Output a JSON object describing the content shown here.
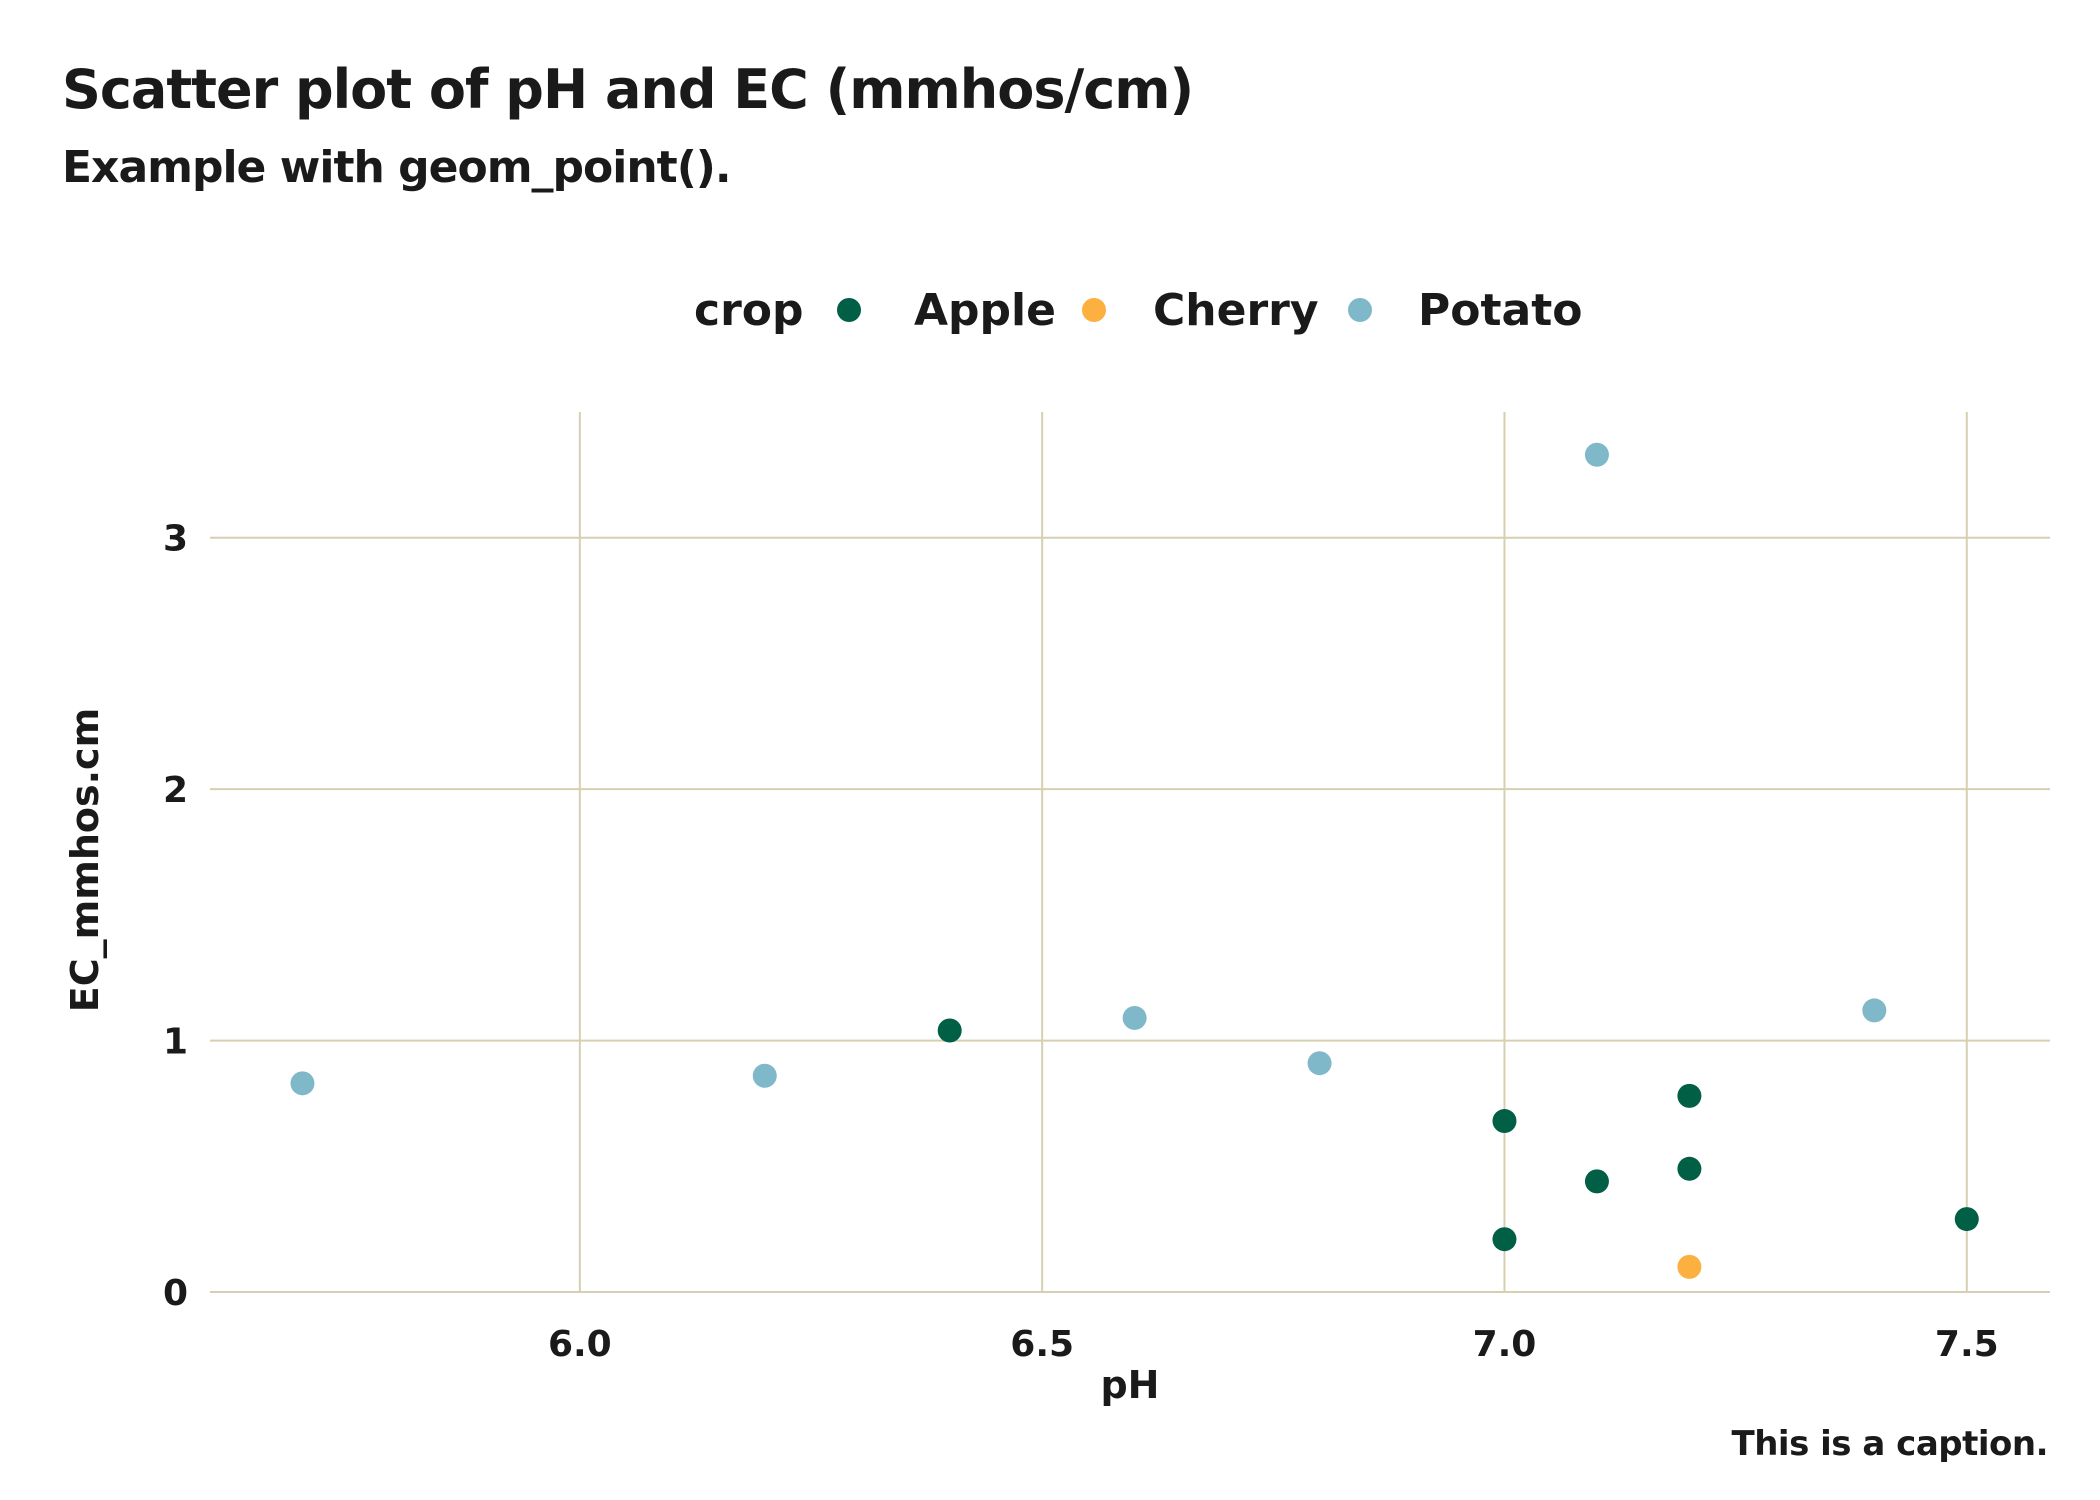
{
  "title": "Scatter plot of pH and EC (mmhos/cm)",
  "subtitle": "Example with geom_point().",
  "caption": "This is a caption.",
  "legend": {
    "title": "crop",
    "items": [
      {
        "label": "Apple",
        "color": "#005f45"
      },
      {
        "label": "Cherry",
        "color": "#fbb040"
      },
      {
        "label": "Potato",
        "color": "#7fb8c8"
      }
    ]
  },
  "chart_data": {
    "type": "scatter",
    "title": "Scatter plot of pH and EC (mmhos/cm)",
    "subtitle": "Example with geom_point().",
    "xlabel": "pH",
    "ylabel": "EC_mmhos.cm",
    "xlim": [
      5.6,
      7.59
    ],
    "ylim": [
      0,
      3.5
    ],
    "xticks": [
      6.0,
      6.5,
      7.0,
      7.5
    ],
    "xtick_labels": [
      "6.0",
      "6.5",
      "7.0",
      "7.5"
    ],
    "yticks": [
      0,
      1,
      2,
      3
    ],
    "ytick_labels": [
      "0",
      "1",
      "2",
      "3"
    ],
    "grid": true,
    "legend_position": "top",
    "gridline_color": "#d6cfb0",
    "series": [
      {
        "name": "Apple",
        "color": "#005f45",
        "x": [
          6.4,
          7.0,
          7.0,
          7.1,
          7.2,
          7.2,
          7.5
        ],
        "y": [
          1.04,
          0.68,
          0.21,
          0.44,
          0.78,
          0.49,
          0.29
        ]
      },
      {
        "name": "Cherry",
        "color": "#fbb040",
        "x": [
          7.2
        ],
        "y": [
          0.1
        ]
      },
      {
        "name": "Potato",
        "color": "#7fb8c8",
        "x": [
          5.7,
          6.2,
          6.6,
          6.8,
          7.1,
          7.4
        ],
        "y": [
          0.83,
          0.86,
          1.09,
          0.91,
          3.33,
          1.12
        ]
      }
    ]
  }
}
